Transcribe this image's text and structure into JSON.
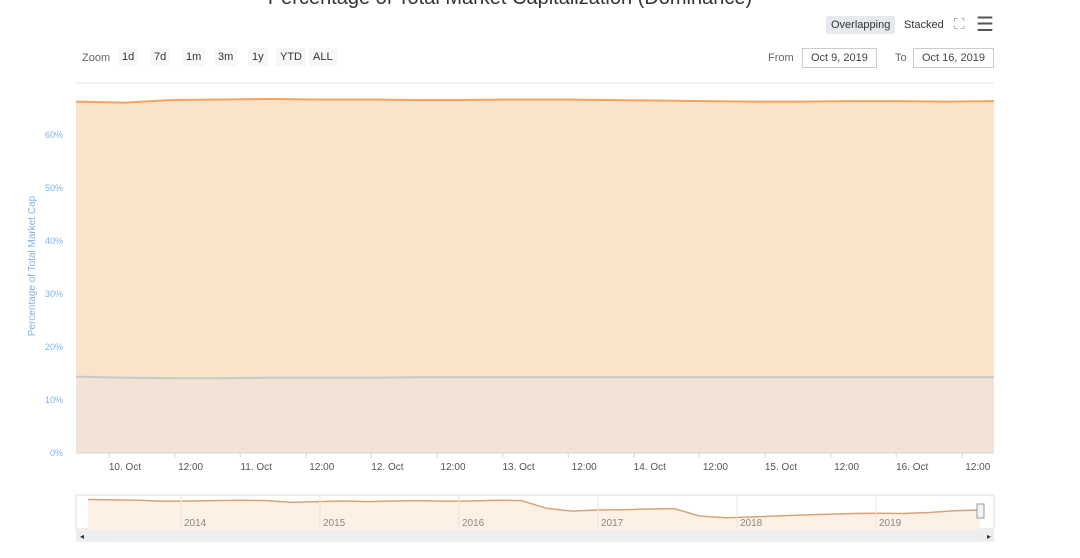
{
  "chart_data": {
    "type": "area",
    "title": "Percentage of Total Market Capitalization (Dominance)",
    "ylabel": "Percentage of Total Market Cap",
    "ylim": [
      0,
      70
    ],
    "yticks": [
      "0%",
      "10%",
      "20%",
      "30%",
      "40%",
      "50%",
      "60%"
    ],
    "xticks": [
      "10. Oct",
      "12:00",
      "11. Oct",
      "12:00",
      "12. Oct",
      "12:00",
      "13. Oct",
      "12:00",
      "14. Oct",
      "12:00",
      "15. Oct",
      "12:00",
      "16. Oct",
      "12:00"
    ],
    "x_range": [
      "Oct 9, 2019",
      "Oct 16, 2019"
    ],
    "grid": true,
    "series": [
      {
        "color": "#f7a35c",
        "fill": "#fae3cb",
        "values": [
          66.3,
          66.1,
          66.6,
          66.7,
          66.8,
          66.7,
          66.7,
          66.6,
          66.6,
          66.7,
          66.7,
          66.6,
          66.5,
          66.4,
          66.3,
          66.3,
          66.4,
          66.4,
          66.3,
          66.4
        ]
      },
      {
        "color": "#c9c9c9",
        "fill": "#f3e3d6",
        "values": [
          14.4,
          14.2,
          14.1,
          14.1,
          14.2,
          14.2,
          14.2,
          14.3,
          14.3,
          14.3,
          14.3,
          14.3,
          14.3,
          14.3,
          14.3,
          14.3,
          14.3,
          14.3,
          14.3,
          14.3
        ]
      }
    ],
    "navigator": {
      "years": [
        "2014",
        "2015",
        "2016",
        "2017",
        "2018",
        "2019"
      ],
      "values": [
        87,
        86,
        85,
        82,
        83,
        84,
        85,
        84,
        79,
        81,
        83,
        81,
        83,
        84,
        82,
        83,
        85,
        84,
        62,
        54,
        57,
        58,
        60,
        61,
        40,
        35,
        37,
        40,
        43,
        45,
        47,
        48,
        47,
        50,
        55,
        57
      ]
    }
  },
  "toolbar": {
    "overlapping": "Overlapping",
    "stacked": "Stacked",
    "zoom_label": "Zoom",
    "zoom_buttons": [
      "1d",
      "7d",
      "1m",
      "3m",
      "1y",
      "YTD",
      "ALL"
    ],
    "from_label": "From",
    "from": "Oct 9, 2019",
    "to_label": "To",
    "to": "Oct 16, 2019"
  }
}
